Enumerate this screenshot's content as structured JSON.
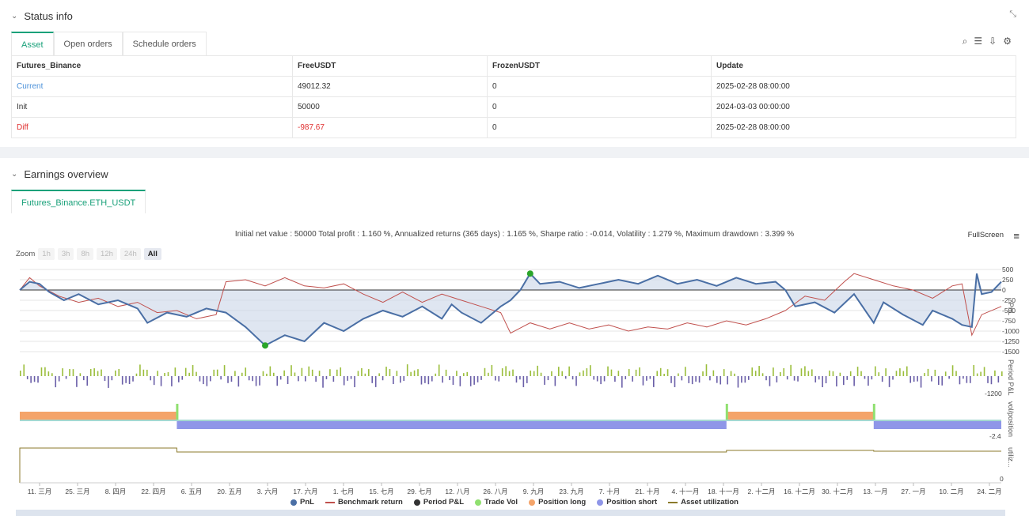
{
  "status": {
    "title": "Status info",
    "tabs": [
      "Asset",
      "Open orders",
      "Schedule orders"
    ],
    "table": {
      "headers": [
        "Futures_Binance",
        "FreeUSDT",
        "FrozenUSDT",
        "Update"
      ],
      "rows": [
        [
          "Current",
          "49012.32",
          "0",
          "2025-02-28 08:00:00"
        ],
        [
          "Init",
          "50000",
          "0",
          "2024-03-03 00:00:00"
        ],
        [
          "Diff",
          "-987.67",
          "0",
          "2025-02-28 08:00:00"
        ]
      ]
    }
  },
  "earnings": {
    "title": "Earnings overview",
    "tab": "Futures_Binance.ETH_USDT",
    "summary": "Initial net value : 50000 Total profit : 1.160 %, Annualized returns (365 days) : 1.165 %, Sharpe ratio : -0.014, Volatility : 1.279 %, Maximum drawdown : 3.399 %",
    "fullscreen": "FullScreen",
    "zoom_label": "Zoom",
    "zoom_buttons": [
      "1h",
      "3h",
      "8h",
      "12h",
      "24h",
      "All"
    ]
  },
  "colors": {
    "pnl": "#4a6fa5",
    "benchmark": "#c0504d",
    "position_long": "#f4a46a",
    "position_short": "#8f96e8",
    "asset_util": "#8b7a2b",
    "accent": "#1aa17a"
  },
  "chart_data": {
    "type": "line",
    "x_ticks": [
      "11. 三月",
      "25. 三月",
      "8. 四月",
      "22. 四月",
      "6. 五月",
      "20. 五月",
      "3. 六月",
      "17. 六月",
      "1. 七月",
      "15. 七月",
      "29. 七月",
      "12. 八月",
      "26. 八月",
      "9. 九月",
      "23. 九月",
      "7. 十月",
      "21. 十月",
      "4. 十一月",
      "18. 十一月",
      "2. 十二月",
      "16. 十二月",
      "30. 十二月",
      "13. 一月",
      "27. 一月",
      "10. 二月",
      "24. 二月"
    ],
    "pnl_axis": {
      "label": "PnL",
      "ticks": [
        "500",
        "250",
        "0",
        "-250",
        "-500",
        "-750",
        "-1000",
        "-1250",
        "-1500"
      ],
      "ylim": [
        -1500,
        500
      ]
    },
    "period_axis": {
      "label": "Period P&L",
      "ticks": [
        "-1200"
      ]
    },
    "position_axis": {
      "label": "vol/position",
      "ticks": [
        "-2.4"
      ]
    },
    "util_axis": {
      "label": "utiliz...",
      "ticks": [
        "0"
      ]
    },
    "pnl_series": [
      {
        "t": 0,
        "v": 0
      },
      {
        "t": 0.01,
        "v": 200
      },
      {
        "t": 0.02,
        "v": 150
      },
      {
        "t": 0.03,
        "v": -50
      },
      {
        "t": 0.045,
        "v": -250
      },
      {
        "t": 0.06,
        "v": -100
      },
      {
        "t": 0.08,
        "v": -350
      },
      {
        "t": 0.1,
        "v": -250
      },
      {
        "t": 0.12,
        "v": -450
      },
      {
        "t": 0.13,
        "v": -800
      },
      {
        "t": 0.15,
        "v": -550
      },
      {
        "t": 0.17,
        "v": -650
      },
      {
        "t": 0.19,
        "v": -450
      },
      {
        "t": 0.21,
        "v": -550
      },
      {
        "t": 0.23,
        "v": -900
      },
      {
        "t": 0.25,
        "v": -1350
      },
      {
        "t": 0.27,
        "v": -1100
      },
      {
        "t": 0.29,
        "v": -1250
      },
      {
        "t": 0.31,
        "v": -800
      },
      {
        "t": 0.33,
        "v": -1000
      },
      {
        "t": 0.35,
        "v": -700
      },
      {
        "t": 0.37,
        "v": -500
      },
      {
        "t": 0.39,
        "v": -650
      },
      {
        "t": 0.41,
        "v": -400
      },
      {
        "t": 0.43,
        "v": -700
      },
      {
        "t": 0.44,
        "v": -350
      },
      {
        "t": 0.45,
        "v": -550
      },
      {
        "t": 0.47,
        "v": -800
      },
      {
        "t": 0.49,
        "v": -400
      },
      {
        "t": 0.5,
        "v": -250
      },
      {
        "t": 0.51,
        "v": 0
      },
      {
        "t": 0.52,
        "v": 400
      },
      {
        "t": 0.53,
        "v": 150
      },
      {
        "t": 0.55,
        "v": 200
      },
      {
        "t": 0.57,
        "v": 50
      },
      {
        "t": 0.59,
        "v": 150
      },
      {
        "t": 0.61,
        "v": 250
      },
      {
        "t": 0.63,
        "v": 150
      },
      {
        "t": 0.65,
        "v": 350
      },
      {
        "t": 0.67,
        "v": 150
      },
      {
        "t": 0.69,
        "v": 250
      },
      {
        "t": 0.71,
        "v": 100
      },
      {
        "t": 0.73,
        "v": 300
      },
      {
        "t": 0.75,
        "v": 150
      },
      {
        "t": 0.77,
        "v": 200
      },
      {
        "t": 0.78,
        "v": 0
      },
      {
        "t": 0.79,
        "v": -400
      },
      {
        "t": 0.81,
        "v": -300
      },
      {
        "t": 0.83,
        "v": -550
      },
      {
        "t": 0.85,
        "v": -100
      },
      {
        "t": 0.87,
        "v": -800
      },
      {
        "t": 0.88,
        "v": -300
      },
      {
        "t": 0.9,
        "v": -600
      },
      {
        "t": 0.92,
        "v": -850
      },
      {
        "t": 0.93,
        "v": -500
      },
      {
        "t": 0.95,
        "v": -700
      },
      {
        "t": 0.96,
        "v": -850
      },
      {
        "t": 0.97,
        "v": -900
      },
      {
        "t": 0.975,
        "v": 400
      },
      {
        "t": 0.98,
        "v": -100
      },
      {
        "t": 0.99,
        "v": -50
      },
      {
        "t": 1.0,
        "v": 200
      }
    ],
    "benchmark_series": [
      {
        "t": 0,
        "v": 0
      },
      {
        "t": 0.01,
        "v": 300
      },
      {
        "t": 0.02,
        "v": 100
      },
      {
        "t": 0.04,
        "v": -150
      },
      {
        "t": 0.06,
        "v": -300
      },
      {
        "t": 0.08,
        "v": -200
      },
      {
        "t": 0.1,
        "v": -400
      },
      {
        "t": 0.12,
        "v": -300
      },
      {
        "t": 0.14,
        "v": -550
      },
      {
        "t": 0.16,
        "v": -500
      },
      {
        "t": 0.18,
        "v": -700
      },
      {
        "t": 0.2,
        "v": -600
      },
      {
        "t": 0.21,
        "v": 200
      },
      {
        "t": 0.23,
        "v": 250
      },
      {
        "t": 0.25,
        "v": 100
      },
      {
        "t": 0.27,
        "v": 300
      },
      {
        "t": 0.29,
        "v": 100
      },
      {
        "t": 0.31,
        "v": 50
      },
      {
        "t": 0.33,
        "v": 150
      },
      {
        "t": 0.35,
        "v": -100
      },
      {
        "t": 0.37,
        "v": -300
      },
      {
        "t": 0.39,
        "v": -50
      },
      {
        "t": 0.41,
        "v": -300
      },
      {
        "t": 0.43,
        "v": -100
      },
      {
        "t": 0.45,
        "v": -250
      },
      {
        "t": 0.47,
        "v": -400
      },
      {
        "t": 0.49,
        "v": -550
      },
      {
        "t": 0.5,
        "v": -1050
      },
      {
        "t": 0.52,
        "v": -800
      },
      {
        "t": 0.54,
        "v": -950
      },
      {
        "t": 0.56,
        "v": -800
      },
      {
        "t": 0.58,
        "v": -950
      },
      {
        "t": 0.6,
        "v": -850
      },
      {
        "t": 0.62,
        "v": -1000
      },
      {
        "t": 0.64,
        "v": -900
      },
      {
        "t": 0.66,
        "v": -950
      },
      {
        "t": 0.68,
        "v": -800
      },
      {
        "t": 0.7,
        "v": -900
      },
      {
        "t": 0.72,
        "v": -750
      },
      {
        "t": 0.74,
        "v": -850
      },
      {
        "t": 0.76,
        "v": -700
      },
      {
        "t": 0.78,
        "v": -500
      },
      {
        "t": 0.8,
        "v": -150
      },
      {
        "t": 0.82,
        "v": -250
      },
      {
        "t": 0.84,
        "v": 200
      },
      {
        "t": 0.85,
        "v": 400
      },
      {
        "t": 0.87,
        "v": 250
      },
      {
        "t": 0.89,
        "v": 100
      },
      {
        "t": 0.91,
        "v": 0
      },
      {
        "t": 0.93,
        "v": -200
      },
      {
        "t": 0.95,
        "v": 100
      },
      {
        "t": 0.96,
        "v": 150
      },
      {
        "t": 0.97,
        "v": -1100
      },
      {
        "t": 0.98,
        "v": -600
      },
      {
        "t": 1.0,
        "v": -400
      }
    ],
    "position_long_spans": [
      [
        0.0,
        0.16
      ],
      [
        0.72,
        0.87
      ]
    ],
    "position_short_spans": [
      [
        0.16,
        0.72
      ],
      [
        0.87,
        1.0
      ]
    ],
    "legend": [
      "PnL",
      "Benchmark return",
      "Period P&L",
      "Trade Vol",
      "Position long",
      "Position short",
      "Asset utilization"
    ]
  }
}
